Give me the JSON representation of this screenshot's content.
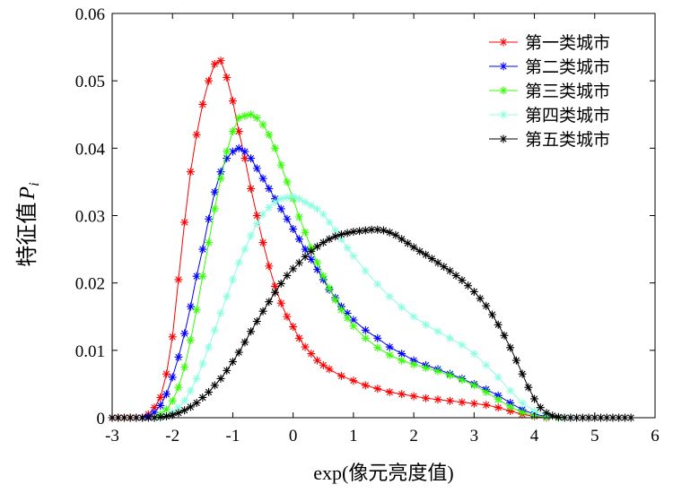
{
  "chart_data": {
    "type": "line",
    "xlabel": "exp(像元亮度值)",
    "ylabel": "特征值",
    "ylabel_symbol": "P",
    "ylabel_subscript": "i",
    "xlim": [
      -3,
      6
    ],
    "ylim": [
      0,
      0.06
    ],
    "xticks": [
      "-3",
      "-2",
      "-1",
      "0",
      "1",
      "2",
      "3",
      "4",
      "5",
      "6"
    ],
    "yticks": [
      "0",
      "0.01",
      "0.02",
      "0.03",
      "0.04",
      "0.05",
      "0.06"
    ],
    "legend_position": "top-right",
    "grid": false,
    "marker": "asterisk",
    "series": [
      {
        "name": "第一类城市",
        "color": "#ff0000",
        "x": [
          -3.0,
          -2.9,
          -2.8,
          -2.7,
          -2.6,
          -2.5,
          -2.4,
          -2.3,
          -2.2,
          -2.1,
          -2.0,
          -1.9,
          -1.8,
          -1.7,
          -1.6,
          -1.5,
          -1.4,
          -1.3,
          -1.2,
          -1.1,
          -1.0,
          -0.9,
          -0.8,
          -0.7,
          -0.6,
          -0.5,
          -0.4,
          -0.3,
          -0.2,
          -0.1,
          0.0,
          0.1,
          0.2,
          0.3,
          0.4,
          0.5,
          0.6,
          0.8,
          1.0,
          1.2,
          1.4,
          1.6,
          1.8,
          2.0,
          2.2,
          2.4,
          2.6,
          2.8,
          3.0,
          3.2,
          3.4,
          3.6,
          3.8,
          4.0,
          4.2
        ],
        "y": [
          0.0,
          0.0,
          0.0,
          0.0,
          0.0,
          0.0,
          0.0005,
          0.0015,
          0.003,
          0.0065,
          0.012,
          0.0205,
          0.029,
          0.0365,
          0.042,
          0.0465,
          0.05,
          0.0525,
          0.053,
          0.0505,
          0.047,
          0.0425,
          0.0385,
          0.034,
          0.03,
          0.026,
          0.0225,
          0.0195,
          0.017,
          0.015,
          0.0135,
          0.0118,
          0.0105,
          0.0095,
          0.0085,
          0.0078,
          0.0072,
          0.0062,
          0.0055,
          0.0048,
          0.0043,
          0.0038,
          0.0035,
          0.0032,
          0.0029,
          0.0027,
          0.0025,
          0.0023,
          0.0021,
          0.0019,
          0.0015,
          0.001,
          0.0005,
          0.0002,
          0.0
        ]
      },
      {
        "name": "第二类城市",
        "color": "#0000ff",
        "x": [
          -2.5,
          -2.4,
          -2.3,
          -2.2,
          -2.1,
          -2.0,
          -1.9,
          -1.8,
          -1.7,
          -1.6,
          -1.5,
          -1.4,
          -1.3,
          -1.2,
          -1.1,
          -1.0,
          -0.9,
          -0.8,
          -0.7,
          -0.6,
          -0.5,
          -0.4,
          -0.3,
          -0.2,
          -0.1,
          0.0,
          0.1,
          0.2,
          0.3,
          0.4,
          0.5,
          0.6,
          0.7,
          0.8,
          0.9,
          1.0,
          1.2,
          1.4,
          1.6,
          1.8,
          2.0,
          2.2,
          2.4,
          2.6,
          2.8,
          3.0,
          3.2,
          3.4,
          3.6,
          3.8,
          4.0,
          4.2,
          4.4
        ],
        "y": [
          0.0,
          0.0002,
          0.0008,
          0.0018,
          0.0035,
          0.006,
          0.009,
          0.0125,
          0.0165,
          0.021,
          0.025,
          0.0295,
          0.0335,
          0.0365,
          0.0385,
          0.0395,
          0.04,
          0.0395,
          0.0385,
          0.037,
          0.0355,
          0.034,
          0.0325,
          0.031,
          0.0295,
          0.028,
          0.0265,
          0.025,
          0.0235,
          0.022,
          0.0205,
          0.019,
          0.0178,
          0.0165,
          0.0155,
          0.0145,
          0.013,
          0.0118,
          0.0105,
          0.0095,
          0.0085,
          0.0078,
          0.0072,
          0.0065,
          0.0058,
          0.005,
          0.0042,
          0.0033,
          0.0022,
          0.0012,
          0.0005,
          0.0002,
          0.0
        ]
      },
      {
        "name": "第三类城市",
        "color": "#33ff00",
        "x": [
          -2.3,
          -2.2,
          -2.1,
          -2.0,
          -1.9,
          -1.8,
          -1.7,
          -1.6,
          -1.5,
          -1.4,
          -1.3,
          -1.2,
          -1.1,
          -1.0,
          -0.9,
          -0.8,
          -0.7,
          -0.6,
          -0.5,
          -0.4,
          -0.3,
          -0.2,
          -0.1,
          0.0,
          0.1,
          0.2,
          0.3,
          0.4,
          0.5,
          0.6,
          0.7,
          0.8,
          0.9,
          1.0,
          1.2,
          1.4,
          1.6,
          1.8,
          2.0,
          2.2,
          2.4,
          2.6,
          2.8,
          3.0,
          3.2,
          3.4,
          3.6,
          3.8,
          4.0,
          4.2,
          4.4
        ],
        "y": [
          0.0,
          0.0005,
          0.0012,
          0.0025,
          0.0045,
          0.0075,
          0.0115,
          0.016,
          0.021,
          0.026,
          0.031,
          0.0355,
          0.0395,
          0.0425,
          0.0445,
          0.0448,
          0.045,
          0.0445,
          0.0435,
          0.042,
          0.04,
          0.0375,
          0.035,
          0.0325,
          0.0298,
          0.0275,
          0.0252,
          0.023,
          0.021,
          0.0192,
          0.0175,
          0.016,
          0.0148,
          0.0136,
          0.0118,
          0.0104,
          0.0093,
          0.0085,
          0.0079,
          0.0074,
          0.0069,
          0.0063,
          0.0056,
          0.0048,
          0.0038,
          0.0027,
          0.0016,
          0.0008,
          0.0003,
          0.0001,
          0.0
        ]
      },
      {
        "name": "第四类城市",
        "color": "#88ffe0",
        "x": [
          -2.2,
          -2.1,
          -2.0,
          -1.9,
          -1.8,
          -1.7,
          -1.6,
          -1.5,
          -1.4,
          -1.3,
          -1.2,
          -1.1,
          -1.0,
          -0.9,
          -0.8,
          -0.7,
          -0.6,
          -0.5,
          -0.4,
          -0.3,
          -0.2,
          -0.1,
          0.0,
          0.1,
          0.2,
          0.3,
          0.4,
          0.5,
          0.6,
          0.7,
          0.8,
          0.9,
          1.0,
          1.2,
          1.4,
          1.6,
          1.8,
          2.0,
          2.2,
          2.4,
          2.6,
          2.8,
          3.0,
          3.2,
          3.4,
          3.6,
          3.8,
          4.0,
          4.2,
          4.4,
          4.6
        ],
        "y": [
          0.0,
          0.0003,
          0.0008,
          0.0015,
          0.0025,
          0.004,
          0.0058,
          0.008,
          0.0105,
          0.013,
          0.0155,
          0.018,
          0.0205,
          0.023,
          0.025,
          0.027,
          0.0288,
          0.0302,
          0.0312,
          0.032,
          0.0325,
          0.0327,
          0.0328,
          0.0325,
          0.032,
          0.0315,
          0.031,
          0.0302,
          0.029,
          0.0278,
          0.0265,
          0.0252,
          0.024,
          0.0218,
          0.0198,
          0.018,
          0.0164,
          0.015,
          0.0138,
          0.0128,
          0.0118,
          0.0108,
          0.0095,
          0.0078,
          0.006,
          0.004,
          0.0022,
          0.001,
          0.0004,
          0.0001,
          0.0
        ]
      },
      {
        "name": "第五类城市",
        "color": "#000000",
        "x": [
          -3.0,
          -2.9,
          -2.8,
          -2.7,
          -2.6,
          -2.5,
          -2.4,
          -2.3,
          -2.2,
          -2.1,
          -2.0,
          -1.9,
          -1.8,
          -1.7,
          -1.6,
          -1.5,
          -1.4,
          -1.3,
          -1.2,
          -1.1,
          -1.0,
          -0.9,
          -0.8,
          -0.7,
          -0.6,
          -0.5,
          -0.4,
          -0.3,
          -0.2,
          -0.1,
          0.0,
          0.1,
          0.2,
          0.3,
          0.4,
          0.5,
          0.6,
          0.7,
          0.8,
          0.9,
          1.0,
          1.1,
          1.2,
          1.3,
          1.4,
          1.5,
          1.6,
          1.7,
          1.8,
          1.9,
          2.0,
          2.1,
          2.2,
          2.3,
          2.4,
          2.5,
          2.6,
          2.7,
          2.8,
          2.9,
          3.0,
          3.1,
          3.2,
          3.3,
          3.4,
          3.5,
          3.6,
          3.7,
          3.8,
          3.9,
          4.0,
          4.1,
          4.2,
          4.3,
          4.4,
          4.5,
          4.6,
          4.7,
          4.8,
          4.9,
          5.0,
          5.1,
          5.2,
          5.3,
          5.4,
          5.5,
          5.6
        ],
        "y": [
          0.0,
          0.0,
          0.0,
          0.0,
          0.0,
          0.0,
          0.0,
          0.0,
          0.0001,
          0.0002,
          0.0004,
          0.0007,
          0.0011,
          0.0016,
          0.0022,
          0.003,
          0.0038,
          0.0048,
          0.0058,
          0.007,
          0.0083,
          0.0097,
          0.0112,
          0.0128,
          0.0143,
          0.0158,
          0.0172,
          0.0186,
          0.0199,
          0.0211,
          0.0221,
          0.023,
          0.0239,
          0.0247,
          0.0254,
          0.026,
          0.0265,
          0.0269,
          0.0272,
          0.0274,
          0.0276,
          0.0277,
          0.0278,
          0.0279,
          0.0279,
          0.0278,
          0.0275,
          0.0271,
          0.0265,
          0.0259,
          0.0253,
          0.0247,
          0.0242,
          0.0236,
          0.023,
          0.0224,
          0.0218,
          0.0211,
          0.0204,
          0.0196,
          0.0187,
          0.0177,
          0.0166,
          0.0153,
          0.0138,
          0.0122,
          0.0104,
          0.0085,
          0.0065,
          0.0045,
          0.0028,
          0.0015,
          0.0007,
          0.0003,
          0.0001,
          0.0,
          0.0,
          0.0,
          0.0,
          0.0,
          0.0,
          0.0,
          0.0,
          0.0,
          0.0,
          0.0,
          0.0
        ]
      }
    ]
  }
}
